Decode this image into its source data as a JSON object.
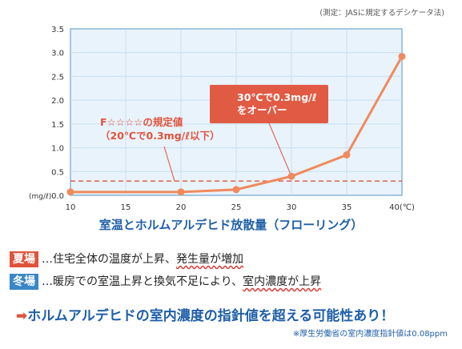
{
  "note": "(測定：JASに規定するデシケータ法)",
  "reference_label_line1": "F☆☆☆☆の規定値",
  "reference_label_line2": "（20℃で0.3mg/ℓ以下）",
  "callout_line1": "30℃で0.3mg/ℓ",
  "callout_line2": "をオーバー",
  "chart_data": {
    "type": "line",
    "title": "室温とホルムアルデヒド放散量（フローリング）",
    "ylabel": "(mg/ℓ)",
    "xlabel_suffix": "(℃)",
    "x": [
      10,
      20,
      25,
      30,
      35,
      40
    ],
    "y": [
      0.07,
      0.07,
      0.12,
      0.4,
      0.85,
      2.92
    ],
    "xlim": [
      10,
      40
    ],
    "ylim": [
      0,
      3.5
    ],
    "x_ticks": [
      "10",
      "15",
      "20",
      "25",
      "30",
      "35",
      "40"
    ],
    "y_ticks": [
      "0.0",
      "0.5",
      "1.0",
      "1.5",
      "2.0",
      "2.5",
      "3.0",
      "3.5"
    ],
    "reference_line": 0.3,
    "grid": true,
    "series_color": "#f08a5d",
    "reference_color": "#e0533b"
  },
  "summer": {
    "tag": "夏場",
    "text1": "…住宅全体の温度が上昇、",
    "highlight": "発生量が増加"
  },
  "winter": {
    "tag": "冬場",
    "text1": "…暖房での室温上昇と換気不足により、",
    "highlight": "室内濃度が上昇"
  },
  "conclusion": "ホルムアルデヒドの室内濃度の指針値を超える可能性あり！",
  "footnote": "※厚生労働省の室内濃度指針値は0.08ppm"
}
